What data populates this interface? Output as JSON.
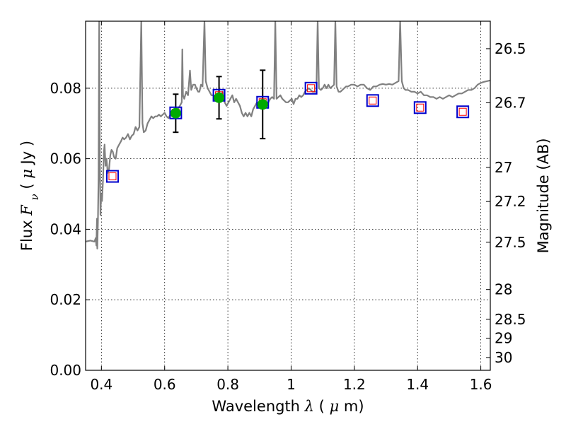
{
  "chart_data": {
    "type": "scatter",
    "xlabel": {
      "prefix": "Wavelength ",
      "symbol": "λ",
      "open": " (",
      "unit_prefix": "μ",
      "unit": "m)"
    },
    "ylabel": {
      "prefix": "Flux ",
      "symbol": "F",
      "subscript": "ν",
      "open": " ( ",
      "unit_prefix": "μ",
      "unit": "Jy )"
    },
    "y2label": "Magnitude (AB)",
    "xlim": [
      0.35,
      1.63
    ],
    "ylim": [
      0.0,
      0.099
    ],
    "grid": true,
    "xticks": [
      {
        "value": 0.4,
        "label": "0.4"
      },
      {
        "value": 0.6,
        "label": "0.6"
      },
      {
        "value": 0.8,
        "label": "0.8"
      },
      {
        "value": 1.0,
        "label": "1"
      },
      {
        "value": 1.2,
        "label": "1.2"
      },
      {
        "value": 1.4,
        "label": "1.4"
      },
      {
        "value": 1.6,
        "label": "1.6"
      }
    ],
    "yticks": [
      {
        "value": 0.0,
        "label": "0.00"
      },
      {
        "value": 0.02,
        "label": "0.02"
      },
      {
        "value": 0.04,
        "label": "0.04"
      },
      {
        "value": 0.06,
        "label": "0.06"
      },
      {
        "value": 0.08,
        "label": "0.08"
      }
    ],
    "y2ticks": [
      {
        "value": 26.5,
        "label": "26.5"
      },
      {
        "value": 26.7,
        "label": "26.7"
      },
      {
        "value": 27.0,
        "label": "27"
      },
      {
        "value": 27.2,
        "label": "27.2"
      },
      {
        "value": 27.5,
        "label": "27.5"
      },
      {
        "value": 28.0,
        "label": "28"
      },
      {
        "value": 28.5,
        "label": "28.5"
      },
      {
        "value": 29.0,
        "label": "29"
      },
      {
        "value": 30.0,
        "label": "30"
      }
    ],
    "colors": {
      "model": "#808080",
      "observed": "#00aa00",
      "model_box": "#0000cc",
      "model_inner": "#ff0000",
      "errorbar": "#000000",
      "grid": "#000000"
    },
    "model_spectrum": [
      [
        0.35,
        0.0365
      ],
      [
        0.365,
        0.0368
      ],
      [
        0.378,
        0.0365
      ],
      [
        0.382,
        0.0375
      ],
      [
        0.384,
        0.0354
      ],
      [
        0.386,
        0.043
      ],
      [
        0.387,
        0.0345
      ],
      [
        0.389,
        0.042
      ],
      [
        0.391,
        0.055
      ],
      [
        0.393,
        0.099
      ],
      [
        0.395,
        0.06
      ],
      [
        0.397,
        0.044
      ],
      [
        0.399,
        0.05
      ],
      [
        0.402,
        0.048
      ],
      [
        0.405,
        0.054
      ],
      [
        0.408,
        0.062
      ],
      [
        0.41,
        0.064
      ],
      [
        0.413,
        0.058
      ],
      [
        0.416,
        0.06
      ],
      [
        0.42,
        0.056
      ],
      [
        0.424,
        0.057
      ],
      [
        0.428,
        0.061
      ],
      [
        0.432,
        0.0625
      ],
      [
        0.436,
        0.062
      ],
      [
        0.44,
        0.0605
      ],
      [
        0.445,
        0.06
      ],
      [
        0.45,
        0.063
      ],
      [
        0.456,
        0.064
      ],
      [
        0.462,
        0.065
      ],
      [
        0.467,
        0.066
      ],
      [
        0.472,
        0.0655
      ],
      [
        0.478,
        0.066
      ],
      [
        0.484,
        0.067
      ],
      [
        0.49,
        0.0655
      ],
      [
        0.496,
        0.0665
      ],
      [
        0.502,
        0.067
      ],
      [
        0.508,
        0.069
      ],
      [
        0.514,
        0.068
      ],
      [
        0.52,
        0.069
      ],
      [
        0.526,
        0.099
      ],
      [
        0.53,
        0.07
      ],
      [
        0.534,
        0.0675
      ],
      [
        0.54,
        0.068
      ],
      [
        0.546,
        0.07
      ],
      [
        0.552,
        0.071
      ],
      [
        0.558,
        0.072
      ],
      [
        0.564,
        0.0715
      ],
      [
        0.57,
        0.072
      ],
      [
        0.576,
        0.072
      ],
      [
        0.582,
        0.0725
      ],
      [
        0.588,
        0.072
      ],
      [
        0.594,
        0.0725
      ],
      [
        0.6,
        0.073
      ],
      [
        0.606,
        0.072
      ],
      [
        0.612,
        0.0715
      ],
      [
        0.618,
        0.0725
      ],
      [
        0.624,
        0.072
      ],
      [
        0.63,
        0.073
      ],
      [
        0.636,
        0.0725
      ],
      [
        0.642,
        0.074
      ],
      [
        0.648,
        0.075
      ],
      [
        0.654,
        0.076
      ],
      [
        0.656,
        0.091
      ],
      [
        0.658,
        0.078
      ],
      [
        0.662,
        0.077
      ],
      [
        0.668,
        0.079
      ],
      [
        0.674,
        0.078
      ],
      [
        0.68,
        0.085
      ],
      [
        0.684,
        0.0795
      ],
      [
        0.69,
        0.081
      ],
      [
        0.696,
        0.081
      ],
      [
        0.7,
        0.08
      ],
      [
        0.706,
        0.079
      ],
      [
        0.71,
        0.079
      ],
      [
        0.715,
        0.081
      ],
      [
        0.72,
        0.0805
      ],
      [
        0.726,
        0.099
      ],
      [
        0.73,
        0.082
      ],
      [
        0.736,
        0.08
      ],
      [
        0.742,
        0.079
      ],
      [
        0.748,
        0.078
      ],
      [
        0.754,
        0.078
      ],
      [
        0.76,
        0.0775
      ],
      [
        0.766,
        0.077
      ],
      [
        0.772,
        0.077
      ],
      [
        0.778,
        0.078
      ],
      [
        0.784,
        0.079
      ],
      [
        0.79,
        0.076
      ],
      [
        0.796,
        0.075
      ],
      [
        0.802,
        0.076
      ],
      [
        0.808,
        0.077
      ],
      [
        0.814,
        0.078
      ],
      [
        0.82,
        0.076
      ],
      [
        0.826,
        0.077
      ],
      [
        0.832,
        0.076
      ],
      [
        0.838,
        0.075
      ],
      [
        0.844,
        0.073
      ],
      [
        0.85,
        0.072
      ],
      [
        0.856,
        0.073
      ],
      [
        0.862,
        0.072
      ],
      [
        0.868,
        0.073
      ],
      [
        0.874,
        0.072
      ],
      [
        0.88,
        0.074
      ],
      [
        0.886,
        0.075
      ],
      [
        0.892,
        0.076
      ],
      [
        0.898,
        0.0755
      ],
      [
        0.904,
        0.075
      ],
      [
        0.91,
        0.0755
      ],
      [
        0.916,
        0.075
      ],
      [
        0.922,
        0.076
      ],
      [
        0.928,
        0.076
      ],
      [
        0.934,
        0.077
      ],
      [
        0.94,
        0.0775
      ],
      [
        0.946,
        0.077
      ],
      [
        0.95,
        0.099
      ],
      [
        0.954,
        0.077
      ],
      [
        0.96,
        0.0775
      ],
      [
        0.966,
        0.078
      ],
      [
        0.972,
        0.077
      ],
      [
        0.978,
        0.0765
      ],
      [
        0.984,
        0.076
      ],
      [
        0.99,
        0.076
      ],
      [
        0.996,
        0.0765
      ],
      [
        1.002,
        0.077
      ],
      [
        1.008,
        0.0755
      ],
      [
        1.014,
        0.077
      ],
      [
        1.02,
        0.077
      ],
      [
        1.026,
        0.078
      ],
      [
        1.032,
        0.0775
      ],
      [
        1.038,
        0.078
      ],
      [
        1.044,
        0.079
      ],
      [
        1.05,
        0.0795
      ],
      [
        1.056,
        0.08
      ],
      [
        1.062,
        0.0795
      ],
      [
        1.068,
        0.079
      ],
      [
        1.074,
        0.079
      ],
      [
        1.08,
        0.079
      ],
      [
        1.084,
        0.099
      ],
      [
        1.088,
        0.08
      ],
      [
        1.094,
        0.0795
      ],
      [
        1.1,
        0.08
      ],
      [
        1.106,
        0.081
      ],
      [
        1.112,
        0.08
      ],
      [
        1.118,
        0.081
      ],
      [
        1.124,
        0.08
      ],
      [
        1.13,
        0.0805
      ],
      [
        1.136,
        0.081
      ],
      [
        1.14,
        0.099
      ],
      [
        1.144,
        0.0805
      ],
      [
        1.15,
        0.079
      ],
      [
        1.156,
        0.079
      ],
      [
        1.162,
        0.0795
      ],
      [
        1.168,
        0.08
      ],
      [
        1.174,
        0.0805
      ],
      [
        1.18,
        0.0805
      ],
      [
        1.19,
        0.081
      ],
      [
        1.2,
        0.081
      ],
      [
        1.21,
        0.0805
      ],
      [
        1.22,
        0.081
      ],
      [
        1.23,
        0.081
      ],
      [
        1.24,
        0.08
      ],
      [
        1.25,
        0.0795
      ],
      [
        1.26,
        0.0805
      ],
      [
        1.27,
        0.0805
      ],
      [
        1.28,
        0.081
      ],
      [
        1.29,
        0.0812
      ],
      [
        1.3,
        0.081
      ],
      [
        1.31,
        0.0812
      ],
      [
        1.32,
        0.081
      ],
      [
        1.33,
        0.0815
      ],
      [
        1.34,
        0.082
      ],
      [
        1.345,
        0.099
      ],
      [
        1.35,
        0.082
      ],
      [
        1.356,
        0.08
      ],
      [
        1.362,
        0.0795
      ],
      [
        1.37,
        0.0795
      ],
      [
        1.38,
        0.079
      ],
      [
        1.39,
        0.079
      ],
      [
        1.4,
        0.0785
      ],
      [
        1.41,
        0.079
      ],
      [
        1.42,
        0.078
      ],
      [
        1.43,
        0.078
      ],
      [
        1.44,
        0.0775
      ],
      [
        1.45,
        0.0775
      ],
      [
        1.46,
        0.077
      ],
      [
        1.47,
        0.0775
      ],
      [
        1.48,
        0.077
      ],
      [
        1.49,
        0.0775
      ],
      [
        1.5,
        0.078
      ],
      [
        1.51,
        0.0775
      ],
      [
        1.52,
        0.078
      ],
      [
        1.53,
        0.0785
      ],
      [
        1.54,
        0.0785
      ],
      [
        1.55,
        0.079
      ],
      [
        1.56,
        0.0795
      ],
      [
        1.57,
        0.0795
      ],
      [
        1.58,
        0.08
      ],
      [
        1.59,
        0.081
      ],
      [
        1.6,
        0.0815
      ],
      [
        1.61,
        0.0818
      ],
      [
        1.62,
        0.082
      ],
      [
        1.63,
        0.0822
      ]
    ],
    "model_photometry": [
      {
        "x": 0.435,
        "y": 0.055
      },
      {
        "x": 0.635,
        "y": 0.073
      },
      {
        "x": 0.772,
        "y": 0.078
      },
      {
        "x": 0.91,
        "y": 0.076
      },
      {
        "x": 1.063,
        "y": 0.08
      },
      {
        "x": 1.258,
        "y": 0.0765
      },
      {
        "x": 1.408,
        "y": 0.0745
      },
      {
        "x": 1.543,
        "y": 0.0733
      }
    ],
    "observed_photometry": [
      {
        "x": 0.635,
        "y": 0.0729,
        "yerr": 0.0054
      },
      {
        "x": 0.772,
        "y": 0.0773,
        "yerr": 0.006
      },
      {
        "x": 0.91,
        "y": 0.0754,
        "yerr": 0.0097
      }
    ]
  }
}
